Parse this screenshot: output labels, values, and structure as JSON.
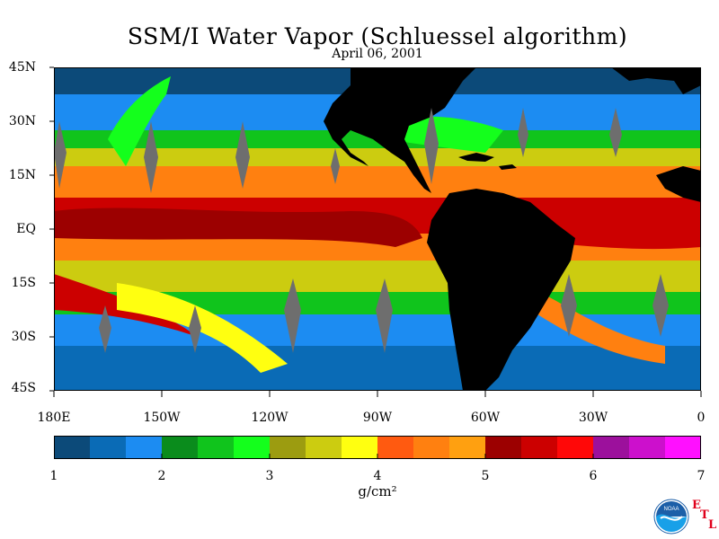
{
  "title": "SSM/I Water Vapor (Schluessel algorithm)",
  "date": "April 06, 2001",
  "map": {
    "lat_labels": [
      "45N",
      "30N",
      "15N",
      "EQ",
      "15S",
      "30S",
      "45S"
    ],
    "lon_labels": [
      "180E",
      "150W",
      "120W",
      "90W",
      "60W",
      "30W",
      "0"
    ],
    "land_color": "#000000",
    "no_data_color": "#6e6e6e"
  },
  "colorbar": {
    "colors": [
      "#0c4a79",
      "#0a6bb6",
      "#1c8cf2",
      "#0a8c1c",
      "#10c41c",
      "#14ff1c",
      "#9c9c10",
      "#cccc10",
      "#ffff10",
      "#ff5a10",
      "#ff8010",
      "#ffa010",
      "#9c0000",
      "#cc0000",
      "#ff0808",
      "#9c109c",
      "#cc10cc",
      "#ff10ff"
    ],
    "labels": [
      "1",
      "2",
      "3",
      "4",
      "5",
      "6",
      "7"
    ],
    "units": "g/cm²"
  },
  "logo": {
    "agency": "NOAA",
    "lab_letters": [
      "E",
      "T",
      "L"
    ]
  }
}
